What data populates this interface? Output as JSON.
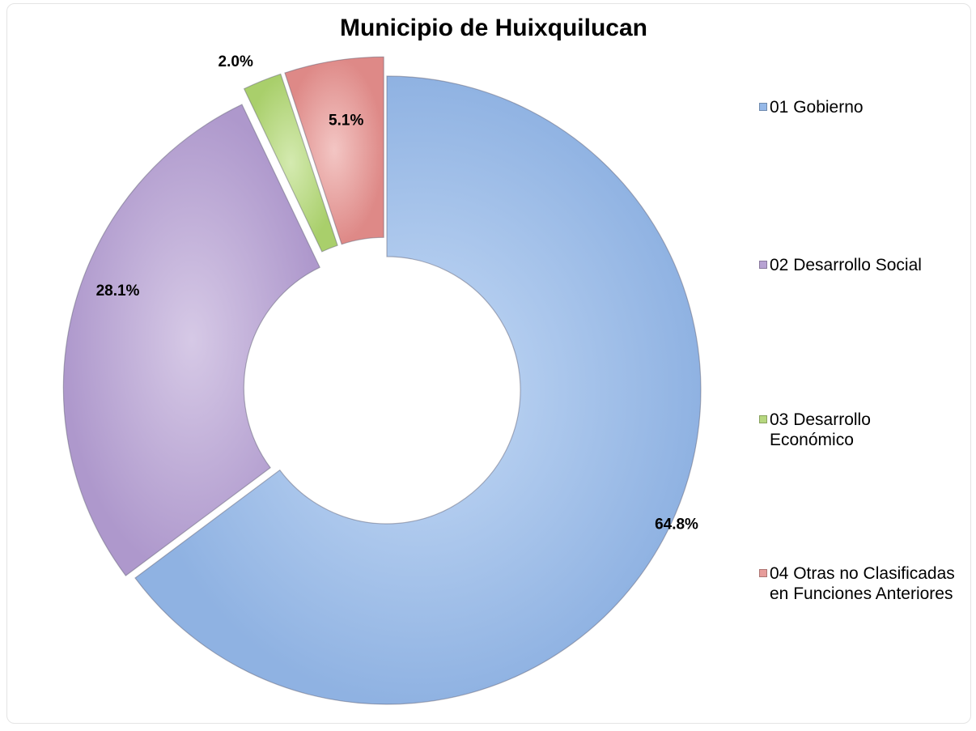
{
  "chart_data": {
    "type": "pie",
    "variant": "exploded-donut",
    "title": "Municipio de Huixquilucan",
    "categories": [
      "01 Gobierno",
      "02 Desarrollo Social",
      "03 Desarrollo Económico",
      "04 Otras no Clasificadas en Funciones Anteriores"
    ],
    "values": [
      64.8,
      28.1,
      2.0,
      5.1
    ],
    "data_labels": [
      "64.8%",
      "28.1%",
      "2.0%",
      "5.1%"
    ],
    "colors": [
      "#95b8e8",
      "#b7a2d2",
      "#b6d77f",
      "#e79c9a"
    ],
    "legend_position": "right"
  }
}
